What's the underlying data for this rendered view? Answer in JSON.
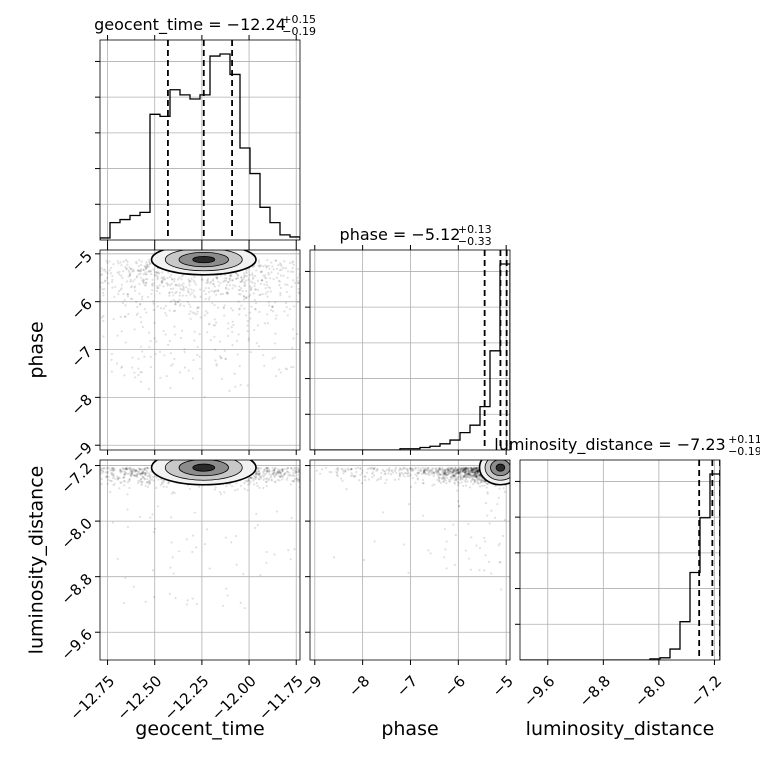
{
  "chart_data": {
    "type": "corner",
    "parameters": [
      "geocent_time",
      "phase",
      "luminosity_distance"
    ],
    "axis_labels": {
      "geocent_time": "geocent_time",
      "phase": "phase",
      "luminosity_distance": "luminosity_distance"
    },
    "titles": [
      {
        "param": "geocent_time",
        "prefix": "geocent_time = ",
        "median": "−12.24",
        "plus": "+0.15",
        "minus": "−0.19"
      },
      {
        "param": "phase",
        "prefix": "phase = ",
        "median": "−5.12",
        "plus": "+0.13",
        "minus": "−0.33"
      },
      {
        "param": "luminosity_distance",
        "prefix": "luminosity_distance = ",
        "median": "−7.23",
        "plus": "+0.11",
        "minus": "−0.19"
      }
    ],
    "ranges": {
      "geocent_time": [
        -12.79,
        -11.73
      ],
      "phase": [
        -9.1,
        -4.92
      ],
      "luminosity_distance": [
        -10.0,
        -7.12
      ]
    },
    "ticks": {
      "geocent_time": [
        {
          "v": -12.75,
          "label": "−12.75"
        },
        {
          "v": -12.5,
          "label": "−12.50"
        },
        {
          "v": -12.25,
          "label": "−12.25"
        },
        {
          "v": -12.0,
          "label": "−12.00"
        },
        {
          "v": -11.75,
          "label": "−11.75"
        }
      ],
      "phase": [
        {
          "v": -9,
          "label": "−9"
        },
        {
          "v": -8,
          "label": "−8"
        },
        {
          "v": -7,
          "label": "−7"
        },
        {
          "v": -6,
          "label": "−6"
        },
        {
          "v": -5,
          "label": "−5"
        }
      ],
      "luminosity_distance": [
        {
          "v": -9.6,
          "label": "−9.6"
        },
        {
          "v": -8.8,
          "label": "−8.8"
        },
        {
          "v": -8.0,
          "label": "−8.0"
        },
        {
          "v": -7.2,
          "label": "−7.2"
        }
      ]
    },
    "quantiles": {
      "geocent_time": [
        -12.43,
        -12.24,
        -12.09
      ],
      "phase": [
        -5.45,
        -5.12,
        -4.99
      ],
      "luminosity_distance": [
        -7.42,
        -7.23,
        -7.12
      ]
    },
    "histograms": {
      "geocent_time": {
        "edges": [
          -12.79,
          -12.737,
          -12.684,
          -12.631,
          -12.578,
          -12.525,
          -12.472,
          -12.419,
          -12.366,
          -12.313,
          -12.26,
          -12.207,
          -12.154,
          -12.101,
          -12.048,
          -11.995,
          -11.942,
          -11.889,
          -11.836,
          -11.783,
          -11.73
        ],
        "counts": [
          2,
          17,
          20,
          24,
          27,
          123,
          121,
          147,
          142,
          138,
          142,
          180,
          182,
          162,
          90,
          65,
          32,
          17,
          5,
          3
        ]
      },
      "phase": {
        "edges": [
          -9.1,
          -8.891,
          -8.682,
          -8.473,
          -8.264,
          -8.055,
          -7.846,
          -7.637,
          -7.428,
          -7.219,
          -7.01,
          -6.801,
          -6.592,
          -6.383,
          -6.174,
          -5.965,
          -5.756,
          -5.547,
          -5.338,
          -5.129,
          -4.92
        ],
        "counts": [
          0,
          0,
          0,
          0,
          0,
          0,
          0,
          0,
          0,
          1,
          1,
          2,
          3,
          5,
          8,
          14,
          20,
          35,
          80,
          150
        ]
      },
      "luminosity_distance": {
        "edges": [
          -10.0,
          -9.856,
          -9.712,
          -9.568,
          -9.424,
          -9.28,
          -9.136,
          -8.992,
          -8.848,
          -8.704,
          -8.56,
          -8.416,
          -8.272,
          -8.128,
          -7.984,
          -7.84,
          -7.696,
          -7.552,
          -7.408,
          -7.264,
          -7.12
        ],
        "counts": [
          0,
          0,
          0,
          0,
          0,
          0,
          0,
          0,
          0,
          0,
          0,
          0,
          0,
          1,
          2,
          10,
          35,
          80,
          130,
          170
        ]
      }
    },
    "scatter_seed": 7,
    "grid": true
  }
}
